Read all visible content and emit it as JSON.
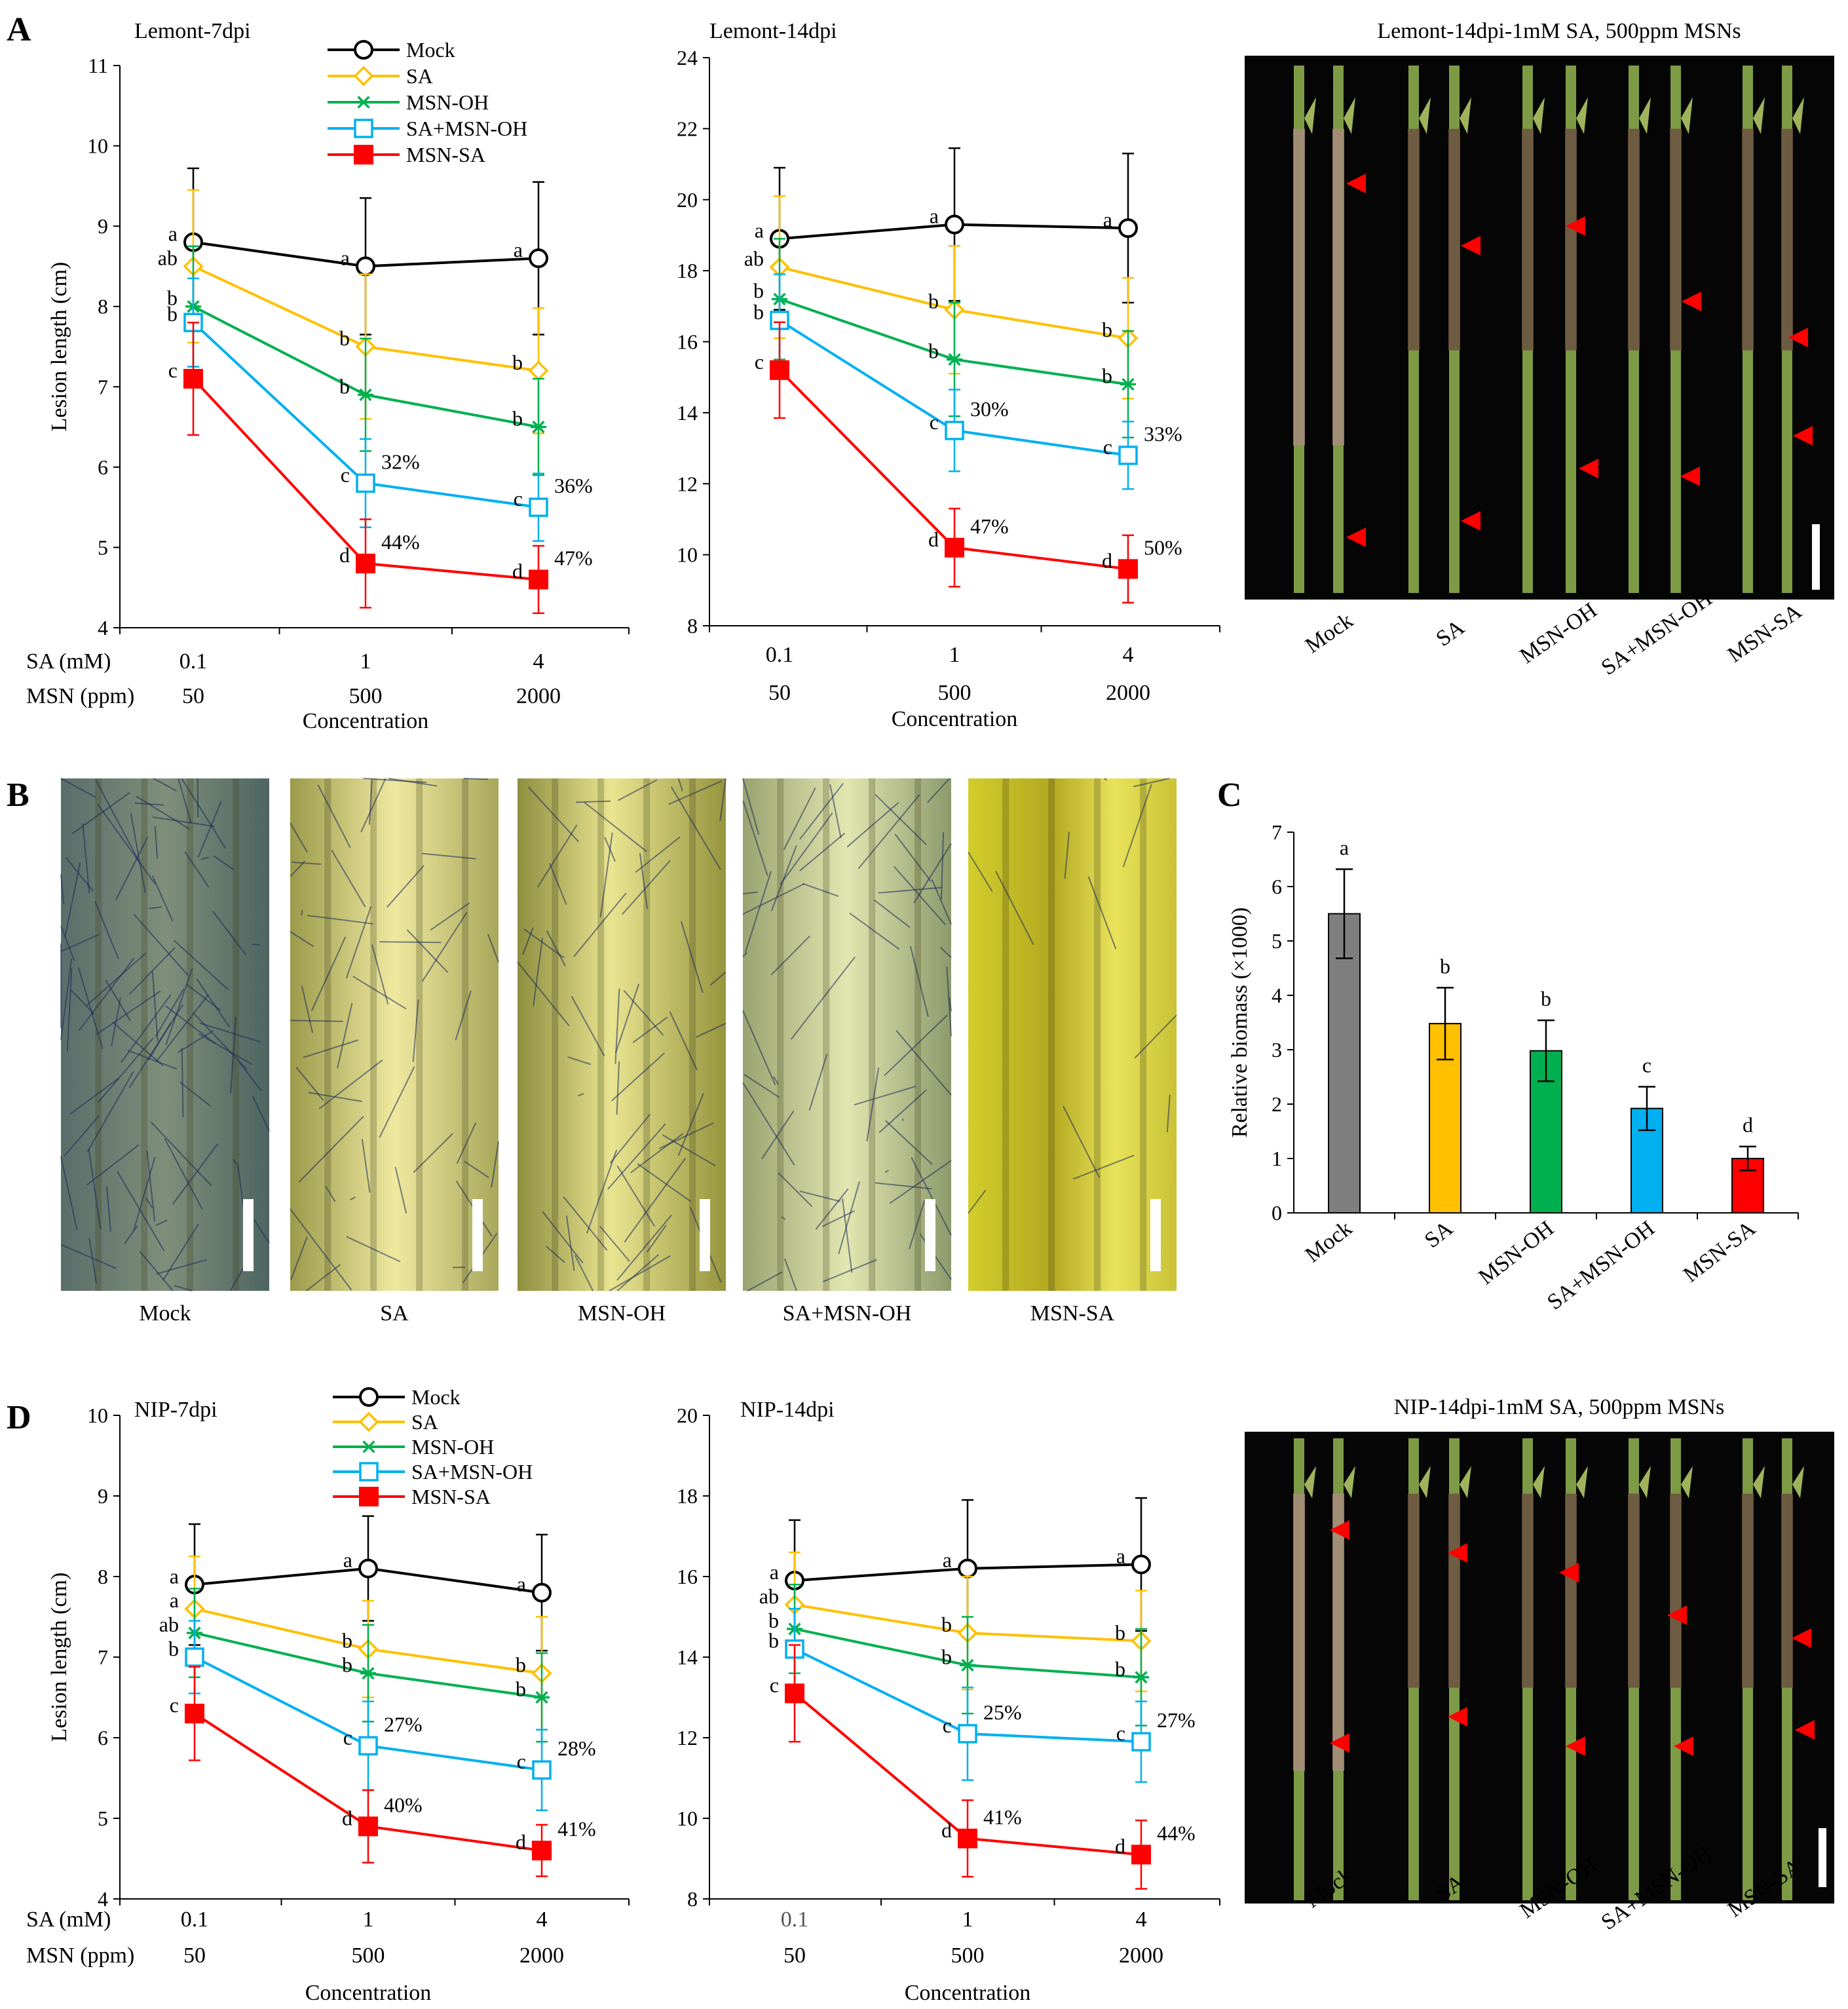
{
  "figure": {
    "panel_letters": [
      "A",
      "B",
      "C",
      "D"
    ]
  },
  "colors": {
    "Mock": "#000000",
    "SA": "#FFC000",
    "MSN-OH": "#00B050",
    "SA+MSN-OH": "#00B0F0",
    "MSN-SA": "#FF0000",
    "Mock_bar": "#7F7F7F",
    "SA_bar": "#FFC000",
    "MSN-OH_bar": "#00B050",
    "SA+MSN-OH_bar": "#00B0F0",
    "MSN-SA_bar": "#FF0000"
  },
  "legend": {
    "series_names": [
      "Mock",
      "SA",
      "MSN-OH",
      "SA+MSN-OH",
      "MSN-SA"
    ],
    "markers": [
      "circle-icon",
      "diamond-icon",
      "asterisk-icon",
      "square-open-icon",
      "square-filled-icon"
    ]
  },
  "axis_row_labels": {
    "sa": "SA (mM)",
    "msn": "MSN (ppm)",
    "sa_values": [
      "0.1",
      "1",
      "4"
    ],
    "msn_values": [
      "50",
      "500",
      "2000"
    ],
    "xlabel": "Concentration"
  },
  "photo_panels": {
    "lemont_stems": {
      "title": "Lemont-14dpi-1mM SA, 500ppm MSNs",
      "labels": [
        "Mock",
        "SA",
        "MSN-OH",
        "SA+MSN-OH",
        "MSN-SA"
      ]
    },
    "micrographs": {
      "labels": [
        "Mock",
        "SA",
        "MSN-OH",
        "SA+MSN-OH",
        "MSN-SA"
      ]
    },
    "nip_stems": {
      "title": "NIP-14dpi-1mM SA, 500ppm MSNs",
      "labels": [
        "Mock",
        "SA",
        "MSN-OH",
        "SA+MSN-OH",
        "MSN-SA"
      ]
    }
  },
  "chart_data": [
    {
      "id": "A1",
      "type": "line",
      "title": "Lemont-7dpi",
      "xlabel": "Concentration",
      "ylabel": "Lesion length (cm)",
      "ylim": [
        4,
        11
      ],
      "yticks": [
        "4",
        "5",
        "6",
        "7",
        "8",
        "9",
        "10",
        "11"
      ],
      "categories": [
        "0.1 / 50",
        "1 / 500",
        "4 / 2000"
      ],
      "series": [
        {
          "name": "Mock",
          "values": [
            8.8,
            8.5,
            8.6
          ],
          "errors": [
            0.92,
            0.85,
            0.95
          ],
          "letters": [
            "a",
            "a",
            "a"
          ]
        },
        {
          "name": "SA",
          "values": [
            8.5,
            7.5,
            7.2
          ],
          "errors": [
            0.95,
            0.9,
            0.78
          ],
          "letters": [
            "ab",
            "b",
            "b"
          ]
        },
        {
          "name": "MSN-OH",
          "values": [
            8.0,
            6.9,
            6.5
          ],
          "errors": [
            0.75,
            0.7,
            0.6
          ],
          "letters": [
            "b",
            "b",
            "b"
          ]
        },
        {
          "name": "SA+MSN-OH",
          "values": [
            7.8,
            5.8,
            5.5
          ],
          "errors": [
            0.55,
            0.55,
            0.42
          ],
          "letters": [
            "b",
            "c",
            "c"
          ],
          "percents": [
            "",
            "32%",
            "36%"
          ]
        },
        {
          "name": "MSN-SA",
          "values": [
            7.1,
            4.8,
            4.6
          ],
          "errors": [
            0.7,
            0.55,
            0.42
          ],
          "letters": [
            "c",
            "d",
            "d"
          ],
          "percents": [
            "",
            "44%",
            "47%"
          ]
        }
      ]
    },
    {
      "id": "A2",
      "type": "line",
      "title": "Lemont-14dpi",
      "xlabel": "Concentration",
      "ylabel": "",
      "ylim": [
        8,
        24
      ],
      "yticks": [
        "8",
        "10",
        "12",
        "14",
        "16",
        "18",
        "20",
        "22",
        "24"
      ],
      "categories": [
        "0.1 / 50",
        "1 / 500",
        "4 / 2000"
      ],
      "series": [
        {
          "name": "Mock",
          "values": [
            18.9,
            19.3,
            19.2
          ],
          "errors": [
            2.0,
            2.15,
            2.1
          ],
          "letters": [
            "a",
            "a",
            "a"
          ]
        },
        {
          "name": "SA",
          "values": [
            18.1,
            16.9,
            16.1
          ],
          "errors": [
            2.0,
            1.8,
            1.7
          ],
          "letters": [
            "ab",
            "b",
            "b"
          ]
        },
        {
          "name": "MSN-OH",
          "values": [
            17.2,
            15.5,
            14.8
          ],
          "errors": [
            1.7,
            1.6,
            1.5
          ],
          "letters": [
            "b",
            "b",
            "b"
          ]
        },
        {
          "name": "SA+MSN-OH",
          "values": [
            16.6,
            13.5,
            12.8
          ],
          "errors": [
            1.3,
            1.15,
            0.95
          ],
          "letters": [
            "b",
            "c",
            "c"
          ],
          "percents": [
            "",
            "30%",
            "33%"
          ]
        },
        {
          "name": "MSN-SA",
          "values": [
            15.2,
            10.2,
            9.6
          ],
          "errors": [
            1.35,
            1.1,
            0.95
          ],
          "letters": [
            "c",
            "d",
            "d"
          ],
          "percents": [
            "",
            "47%",
            "50%"
          ]
        }
      ]
    },
    {
      "id": "C",
      "type": "bar",
      "title": "",
      "xlabel": "",
      "ylabel": "Relative biomass (×1000)",
      "ylim": [
        0,
        7
      ],
      "yticks": [
        "0",
        "1",
        "2",
        "3",
        "4",
        "5",
        "6",
        "7"
      ],
      "categories": [
        "Mock",
        "SA",
        "MSN-OH",
        "SA+MSN-OH",
        "MSN-SA"
      ],
      "values": [
        5.5,
        3.48,
        2.98,
        1.92,
        1.0
      ],
      "errors": [
        0.82,
        0.66,
        0.56,
        0.4,
        0.22
      ],
      "letters": [
        "a",
        "b",
        "b",
        "c",
        "d"
      ]
    },
    {
      "id": "D1",
      "type": "line",
      "title": "NIP-7dpi",
      "xlabel": "Concentration",
      "ylabel": "Lesion length (cm)",
      "ylim": [
        4,
        10
      ],
      "yticks": [
        "4",
        "5",
        "6",
        "7",
        "8",
        "9",
        "10"
      ],
      "categories": [
        "0.1 / 50",
        "1 / 500",
        "4 / 2000"
      ],
      "series": [
        {
          "name": "Mock",
          "values": [
            7.9,
            8.1,
            7.8
          ],
          "errors": [
            0.75,
            0.65,
            0.72
          ],
          "letters": [
            "a",
            "a",
            "a"
          ]
        },
        {
          "name": "SA",
          "values": [
            7.6,
            7.1,
            6.8
          ],
          "errors": [
            0.65,
            0.6,
            0.7
          ],
          "letters": [
            "a",
            "b",
            "b"
          ]
        },
        {
          "name": "MSN-OH",
          "values": [
            7.3,
            6.8,
            6.5
          ],
          "errors": [
            0.55,
            0.6,
            0.55
          ],
          "letters": [
            "ab",
            "b",
            "b"
          ]
        },
        {
          "name": "SA+MSN-OH",
          "values": [
            7.0,
            5.9,
            5.6
          ],
          "errors": [
            0.45,
            0.55,
            0.5
          ],
          "letters": [
            "b",
            "c",
            "c"
          ],
          "percents": [
            "",
            "27%",
            "28%"
          ]
        },
        {
          "name": "MSN-SA",
          "values": [
            6.3,
            4.9,
            4.6
          ],
          "errors": [
            0.58,
            0.45,
            0.32
          ],
          "letters": [
            "c",
            "d",
            "d"
          ],
          "percents": [
            "",
            "40%",
            "41%"
          ]
        }
      ]
    },
    {
      "id": "D2",
      "type": "line",
      "title": "NIP-14dpi",
      "xlabel": "Concentration",
      "ylabel": "",
      "ylim": [
        8,
        20
      ],
      "yticks": [
        "8",
        "10",
        "12",
        "14",
        "16",
        "18",
        "20"
      ],
      "categories": [
        "0.1 / 50",
        "1 / 500",
        "4 / 2000"
      ],
      "series": [
        {
          "name": "Mock",
          "values": [
            15.9,
            16.2,
            16.3
          ],
          "errors": [
            1.5,
            1.7,
            1.65
          ],
          "letters": [
            "a",
            "a",
            "a"
          ]
        },
        {
          "name": "SA",
          "values": [
            15.3,
            14.6,
            14.4
          ],
          "errors": [
            1.3,
            1.4,
            1.25
          ],
          "letters": [
            "ab",
            "b",
            "b"
          ]
        },
        {
          "name": "MSN-OH",
          "values": [
            14.7,
            13.8,
            13.5
          ],
          "errors": [
            1.1,
            1.2,
            1.2
          ],
          "letters": [
            "b",
            "b",
            "b"
          ]
        },
        {
          "name": "SA+MSN-OH",
          "values": [
            14.2,
            12.1,
            11.9
          ],
          "errors": [
            1.0,
            1.15,
            1.0
          ],
          "letters": [
            "b",
            "c",
            "c"
          ],
          "percents": [
            "",
            "25%",
            "27%"
          ]
        },
        {
          "name": "MSN-SA",
          "values": [
            13.1,
            9.5,
            9.1
          ],
          "errors": [
            1.2,
            0.95,
            0.85
          ],
          "letters": [
            "c",
            "d",
            "d"
          ],
          "percents": [
            "",
            "41%",
            "44%"
          ]
        }
      ]
    }
  ]
}
